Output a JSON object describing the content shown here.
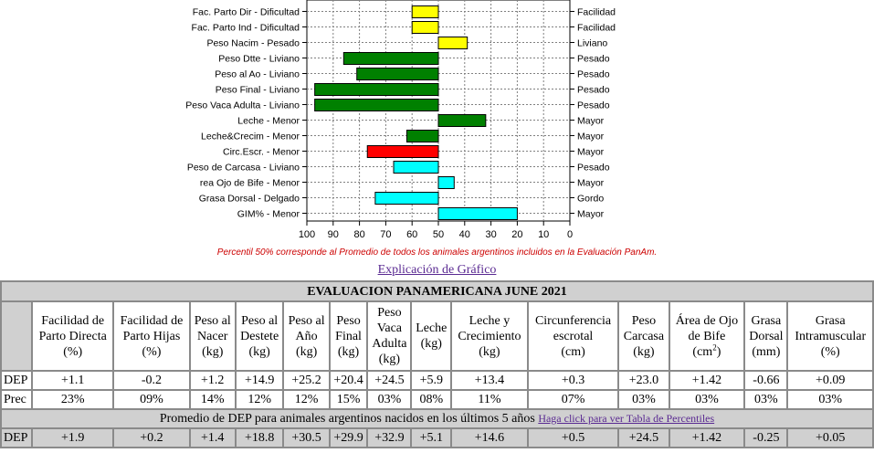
{
  "chart_data": {
    "type": "bar",
    "orientation": "horizontal",
    "axis_ticks": [
      "100",
      "90",
      "80",
      "70",
      "60",
      "50",
      "40",
      "30",
      "20",
      "10",
      "0"
    ],
    "axis_range": [
      100,
      0
    ],
    "center": 50,
    "grid": true,
    "bars": [
      {
        "left_label": "Fac. Parto Dir - Dificultad",
        "right_label": "Facilidad",
        "value": 60,
        "color": "#ffff00"
      },
      {
        "left_label": "Fac. Parto Ind - Dificultad",
        "right_label": "Facilidad",
        "value": 60,
        "color": "#ffff00"
      },
      {
        "left_label": "Peso Nacim - Pesado",
        "right_label": "Liviano",
        "value": 39,
        "color": "#ffff00"
      },
      {
        "left_label": "Peso Dtte - Liviano",
        "right_label": "Pesado",
        "value": 86,
        "color": "#008000"
      },
      {
        "left_label": "Peso al Ao - Liviano",
        "right_label": "Pesado",
        "value": 81,
        "color": "#008000"
      },
      {
        "left_label": "Peso Final - Liviano",
        "right_label": "Pesado",
        "value": 97,
        "color": "#008000"
      },
      {
        "left_label": "Peso Vaca Adulta - Liviano",
        "right_label": "Pesado",
        "value": 97,
        "color": "#008000"
      },
      {
        "left_label": "Leche - Menor",
        "right_label": "Mayor",
        "value": 32,
        "color": "#008000"
      },
      {
        "left_label": "Leche&Crecim - Menor",
        "right_label": "Mayor",
        "value": 62,
        "color": "#008000"
      },
      {
        "left_label": "Circ.Escr. - Menor",
        "right_label": "Mayor",
        "value": 77,
        "color": "#ff0000"
      },
      {
        "left_label": "Peso de Carcasa - Liviano",
        "right_label": "Pesado",
        "value": 67,
        "color": "#00ffff"
      },
      {
        "left_label": "rea Ojo de Bife - Menor",
        "right_label": "Mayor",
        "value": 44,
        "color": "#00ffff"
      },
      {
        "left_label": "Grasa Dorsal - Delgado",
        "right_label": "Gordo",
        "value": 74,
        "color": "#00ffff"
      },
      {
        "left_label": "GIM% - Menor",
        "right_label": "Mayor",
        "value": 20,
        "color": "#00ffff"
      }
    ]
  },
  "chart_note": "Percentil 50% corresponde al Promedio de todos los animales argentinos incluidos en la Evaluación PanAm.",
  "explain_link": "Explicación de Gráfico",
  "table": {
    "title": "EVALUACION PANAMERICANA JUNE 2021",
    "headers": [
      [
        "Facilidad de",
        "Parto Directa",
        "(%)"
      ],
      [
        "Facilidad de",
        "Parto Hijas",
        "(%)"
      ],
      [
        "Peso al",
        "Nacer",
        "(kg)"
      ],
      [
        "Peso al",
        "Destete",
        "(kg)"
      ],
      [
        "Peso al",
        "Año",
        "(kg)"
      ],
      [
        "Peso",
        "Final",
        "(kg)"
      ],
      [
        "Peso",
        "Vaca",
        "Adulta",
        "(kg)"
      ],
      [
        "Leche",
        "(kg)"
      ],
      [
        "Leche y",
        "Crecimiento",
        "(kg)"
      ],
      [
        "Circunferencia",
        "escrotal",
        "(cm)"
      ],
      [
        "Peso",
        "Carcasa",
        "(kg)"
      ],
      [
        "Área de Ojo",
        "de Bife"
      ],
      [
        "Grasa",
        "Dorsal",
        "(mm)"
      ],
      [
        "Grasa",
        "Intramuscular",
        "(%)"
      ]
    ],
    "area_unit": "(cm",
    "area_unit_sup": "2",
    "area_unit_close": ")",
    "rows": [
      {
        "label": "DEP",
        "values": [
          "+1.1",
          "-0.2",
          "+1.2",
          "+14.9",
          "+25.2",
          "+20.4",
          "+24.5",
          "+5.9",
          "+13.4",
          "+0.3",
          "+23.0",
          "+1.42",
          "-0.66",
          "+0.09"
        ]
      },
      {
        "label": "Prec",
        "values": [
          "23%",
          "09%",
          "14%",
          "12%",
          "12%",
          "15%",
          "03%",
          "08%",
          "11%",
          "07%",
          "03%",
          "03%",
          "03%",
          "03%"
        ]
      }
    ],
    "avg_text": "Promedio de DEP para animales argentinos nacidos en los últimos 5 años",
    "avg_link": "Haga click para ver Tabla de Percentiles",
    "avg_row": {
      "label": "DEP",
      "values": [
        "+1.9",
        "+0.2",
        "+1.4",
        "+18.8",
        "+30.5",
        "+29.9",
        "+32.9",
        "+5.1",
        "+14.6",
        "+0.5",
        "+24.5",
        "+1.42",
        "-0.25",
        "+0.05"
      ]
    }
  }
}
